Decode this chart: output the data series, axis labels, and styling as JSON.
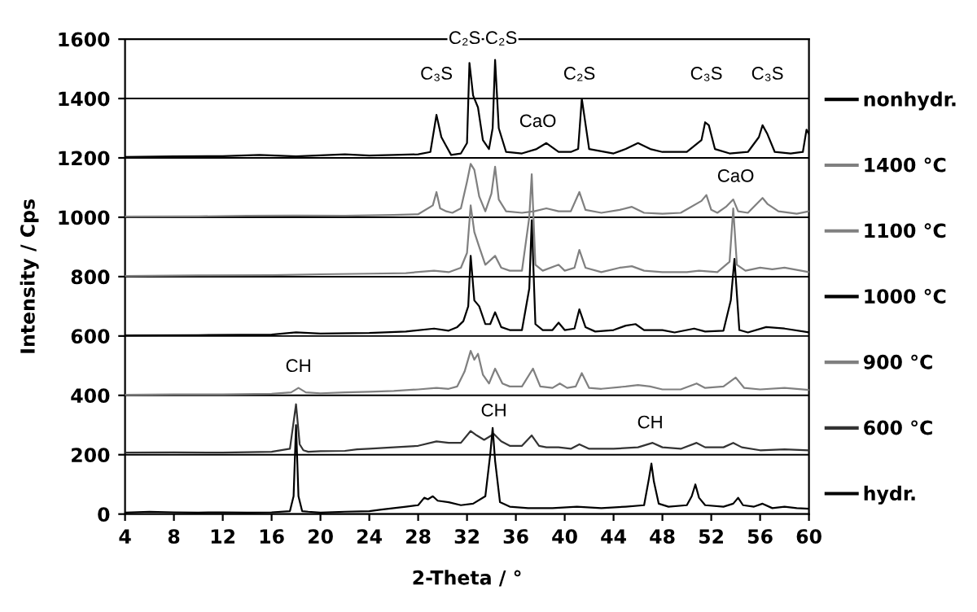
{
  "chart_data": {
    "type": "line",
    "xlabel": "2-Theta / °",
    "ylabel": "Intensity / Cps",
    "xlim": [
      4,
      60
    ],
    "xticks": [
      4,
      8,
      12,
      16,
      20,
      24,
      28,
      32,
      36,
      40,
      44,
      48,
      52,
      56,
      60
    ],
    "ylim": [
      0,
      1600
    ],
    "yticks": [
      0,
      200,
      400,
      600,
      800,
      1000,
      1200,
      1400,
      1600
    ],
    "grid": "y",
    "legend": "right",
    "marker": "none",
    "line_style": "solid",
    "series": [
      {
        "name": "nonhydr.",
        "color": "#000000",
        "x": [
          4,
          8,
          12,
          15,
          18,
          22,
          24,
          26,
          28,
          29.0,
          29.5,
          29.9,
          30.3,
          30.7,
          31.5,
          32.0,
          32.2,
          32.5,
          32.9,
          33.3,
          33.8,
          34.1,
          34.3,
          34.6,
          35.2,
          36.5,
          37.7,
          38.5,
          39.5,
          40.5,
          41.1,
          41.4,
          42,
          44,
          45,
          46,
          47,
          48,
          50,
          51.2,
          51.5,
          51.8,
          52.3,
          53.5,
          55,
          55.9,
          56.2,
          56.6,
          57.2,
          58.5,
          59.5,
          59.8,
          60
        ],
        "values": [
          1203,
          1205,
          1206,
          1210,
          1205,
          1212,
          1208,
          1210,
          1212,
          1220,
          1345,
          1270,
          1240,
          1210,
          1215,
          1250,
          1520,
          1410,
          1370,
          1260,
          1230,
          1300,
          1530,
          1300,
          1220,
          1215,
          1230,
          1250,
          1220,
          1220,
          1230,
          1400,
          1230,
          1215,
          1230,
          1250,
          1230,
          1220,
          1220,
          1260,
          1320,
          1310,
          1230,
          1215,
          1220,
          1270,
          1310,
          1280,
          1220,
          1215,
          1220,
          1295,
          1280
        ]
      },
      {
        "name": "1400 °C",
        "color": "#808080",
        "x": [
          4,
          10,
          14,
          18,
          22,
          26,
          28,
          29.2,
          29.5,
          29.8,
          30.3,
          30.8,
          31.5,
          32.0,
          32.3,
          32.6,
          33,
          33.5,
          34.0,
          34.3,
          34.6,
          35.2,
          36.5,
          37.5,
          38.5,
          39.5,
          40.5,
          41.2,
          41.7,
          43,
          44.5,
          45.5,
          46.5,
          48,
          49.5,
          51.2,
          51.6,
          52,
          52.5,
          53.2,
          53.8,
          54.2,
          55,
          56.2,
          56.6,
          57.5,
          59,
          60
        ],
        "values": [
          1002,
          1003,
          1005,
          1006,
          1005,
          1008,
          1010,
          1040,
          1085,
          1030,
          1020,
          1015,
          1030,
          1120,
          1180,
          1160,
          1070,
          1020,
          1080,
          1170,
          1060,
          1020,
          1015,
          1020,
          1030,
          1020,
          1020,
          1085,
          1025,
          1015,
          1025,
          1035,
          1015,
          1012,
          1015,
          1055,
          1075,
          1025,
          1015,
          1035,
          1060,
          1020,
          1015,
          1065,
          1045,
          1020,
          1012,
          1020
        ]
      },
      {
        "name": "1100 °C",
        "color": "#808080",
        "x": [
          4,
          10,
          16,
          20,
          24,
          27,
          29.3,
          30.5,
          31.5,
          32.0,
          32.3,
          32.6,
          33,
          33.5,
          34.3,
          34.8,
          35.5,
          36.5,
          37.1,
          37.3,
          37.6,
          38.2,
          39.5,
          40,
          40.8,
          41.2,
          41.7,
          43,
          44.5,
          45.5,
          46.5,
          48,
          50,
          51,
          52.5,
          53.5,
          53.8,
          54.1,
          54.8,
          56,
          57,
          58,
          60
        ],
        "values": [
          802,
          804,
          805,
          808,
          810,
          812,
          820,
          815,
          830,
          880,
          1040,
          950,
          900,
          840,
          870,
          830,
          820,
          820,
          1000,
          1145,
          840,
          820,
          840,
          820,
          830,
          890,
          830,
          815,
          830,
          835,
          820,
          815,
          815,
          820,
          815,
          850,
          1030,
          840,
          820,
          830,
          825,
          830,
          815
        ]
      },
      {
        "name": "1000 °C",
        "color": "#000000",
        "x": [
          4,
          10,
          16,
          18,
          20,
          24,
          27,
          29.3,
          30.5,
          31.2,
          31.7,
          32.1,
          32.3,
          32.6,
          33,
          33.5,
          33.9,
          34.3,
          34.8,
          35.5,
          36.5,
          37.1,
          37.3,
          37.6,
          38.2,
          39,
          39.5,
          40,
          40.8,
          41.2,
          41.7,
          42.5,
          44,
          45,
          45.8,
          46.5,
          48,
          49,
          50.6,
          51.5,
          53,
          53.6,
          53.9,
          54.3,
          55,
          56.5,
          58,
          60
        ],
        "values": [
          602,
          603,
          605,
          612,
          608,
          610,
          615,
          625,
          618,
          630,
          650,
          700,
          870,
          720,
          700,
          640,
          640,
          680,
          630,
          620,
          620,
          760,
          990,
          640,
          620,
          620,
          645,
          620,
          625,
          690,
          630,
          615,
          620,
          635,
          640,
          620,
          620,
          612,
          625,
          615,
          618,
          720,
          860,
          620,
          612,
          630,
          625,
          612
        ]
      },
      {
        "name": "900 °C",
        "color": "#808080",
        "x": [
          4,
          8,
          12,
          16,
          17.6,
          18.2,
          18.8,
          20,
          22,
          24,
          26,
          28,
          29.5,
          30.5,
          31.2,
          31.8,
          32.3,
          32.6,
          32.9,
          33.3,
          33.8,
          34.3,
          34.9,
          35.5,
          36.5,
          37.4,
          38,
          39,
          39.6,
          40.2,
          40.9,
          41.4,
          42,
          43,
          45,
          46,
          47,
          48,
          49.5,
          50.8,
          51.5,
          53,
          54,
          54.7,
          56,
          58,
          60
        ],
        "values": [
          402,
          403,
          403,
          405,
          410,
          425,
          410,
          407,
          410,
          412,
          415,
          420,
          425,
          422,
          430,
          480,
          550,
          520,
          540,
          470,
          440,
          490,
          440,
          430,
          430,
          490,
          430,
          425,
          440,
          425,
          430,
          475,
          425,
          422,
          430,
          435,
          430,
          420,
          420,
          440,
          425,
          430,
          460,
          425,
          420,
          425,
          418
        ]
      },
      {
        "name": "600 °C",
        "color": "#333333",
        "x": [
          4,
          8,
          12,
          16,
          17.5,
          18.0,
          18.3,
          18.6,
          19,
          20,
          22,
          23,
          24,
          26,
          28,
          29.5,
          30.5,
          31.5,
          32.3,
          32.8,
          33.4,
          34.2,
          34.8,
          35.5,
          36.5,
          37.3,
          37.9,
          38.5,
          39.5,
          40.5,
          41.2,
          42,
          44,
          46,
          47.2,
          48,
          49.5,
          50.8,
          51.5,
          53,
          53.8,
          54.5,
          56,
          58,
          60
        ],
        "values": [
          207,
          208,
          207,
          210,
          220,
          370,
          235,
          215,
          210,
          212,
          213,
          218,
          220,
          225,
          230,
          245,
          240,
          240,
          280,
          265,
          250,
          270,
          245,
          230,
          230,
          265,
          230,
          225,
          225,
          220,
          235,
          220,
          220,
          225,
          240,
          225,
          220,
          240,
          225,
          225,
          240,
          225,
          215,
          218,
          215
        ]
      },
      {
        "name": "hydr.",
        "color": "#000000",
        "x": [
          4,
          6,
          8,
          10,
          12,
          14,
          16,
          17.5,
          17.8,
          18.0,
          18.2,
          18.5,
          19,
          20,
          22,
          24,
          25,
          26,
          27,
          28,
          28.5,
          28.8,
          29.2,
          29.6,
          30.5,
          31.5,
          32.5,
          33.5,
          33.9,
          34.1,
          34.3,
          34.7,
          35.5,
          37,
          39,
          41,
          43,
          45,
          46.5,
          46.9,
          47.1,
          47.3,
          47.7,
          48.5,
          50,
          50.4,
          50.7,
          51,
          51.5,
          53,
          53.8,
          54.2,
          54.6,
          55.5,
          56.2,
          57,
          58,
          59,
          60
        ],
        "values": [
          5,
          8,
          6,
          5,
          6,
          5,
          6,
          10,
          60,
          300,
          60,
          10,
          8,
          5,
          8,
          10,
          15,
          20,
          25,
          30,
          55,
          50,
          60,
          45,
          40,
          30,
          35,
          60,
          200,
          290,
          180,
          40,
          25,
          20,
          20,
          25,
          20,
          25,
          30,
          120,
          170,
          110,
          35,
          25,
          30,
          60,
          100,
          55,
          30,
          25,
          35,
          55,
          30,
          25,
          35,
          20,
          25,
          20,
          18
        ]
      }
    ],
    "annotations": [
      {
        "text": "C₂S",
        "x": 31.8,
        "y": 1600
      },
      {
        "text": "C₂S",
        "x": 34.8,
        "y": 1600
      },
      {
        "text": "C₃S",
        "x": 29.5,
        "y": 1480
      },
      {
        "text": "C₂S",
        "x": 41.2,
        "y": 1480
      },
      {
        "text": "C₃S",
        "x": 51.6,
        "y": 1480
      },
      {
        "text": "C₃S",
        "x": 56.6,
        "y": 1480
      },
      {
        "text": "CaO",
        "x": 37.8,
        "y": 1320
      },
      {
        "text": "CaO",
        "x": 54,
        "y": 1135
      },
      {
        "text": "CH",
        "x": 18.2,
        "y": 495
      },
      {
        "text": "CH",
        "x": 34.2,
        "y": 345
      },
      {
        "text": "CH",
        "x": 47,
        "y": 305
      }
    ]
  }
}
